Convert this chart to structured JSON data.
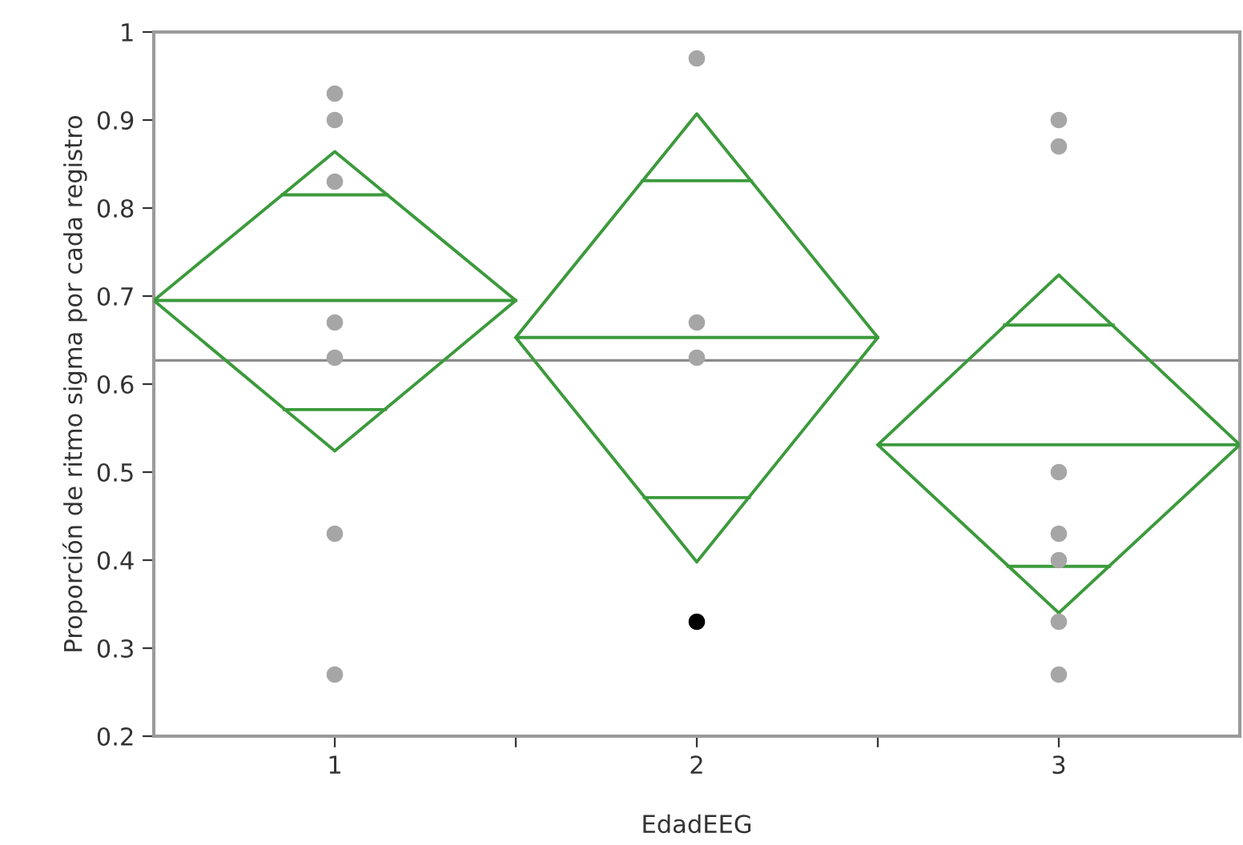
{
  "chart_data": {
    "type": "scatter",
    "xlabel": "EdadEEG",
    "ylabel": "Proporción de ritmo sigma por cada registro",
    "xlim": [
      0.5,
      3.5
    ],
    "ylim": [
      0.2,
      1.0
    ],
    "xticks": [
      1,
      {
        "value": 1.5,
        "label": null
      },
      2,
      {
        "value": 2.5,
        "label": null
      },
      3
    ],
    "yticks": [
      0.2,
      0.3,
      0.4,
      0.5,
      0.6,
      0.7,
      0.8,
      0.9,
      {
        "value": 1.0,
        "label": "1"
      }
    ],
    "grid": false,
    "marker": "circle",
    "ref_lines": [
      {
        "axis": "y",
        "value": 0.627,
        "color": "#8c8c8c"
      }
    ],
    "series": [
      {
        "type": "line",
        "marker": "none",
        "line_style": "solid",
        "color": "#3c9a3c",
        "x": [
          0.5,
          1,
          1.5,
          1,
          0.5,
          1.5
        ],
        "values": [
          0.695,
          0.864,
          0.695,
          0.524,
          0.695,
          0.695
        ]
      },
      {
        "type": "line",
        "marker": "none",
        "line_style": "solid",
        "color": "#3c9a3c",
        "x": [
          0.855,
          1.145
        ],
        "values": [
          0.815,
          0.815
        ]
      },
      {
        "type": "line",
        "marker": "none",
        "line_style": "solid",
        "color": "#3c9a3c",
        "x": [
          0.86,
          1.14
        ],
        "values": [
          0.571,
          0.571
        ]
      },
      {
        "type": "line",
        "marker": "none",
        "line_style": "solid",
        "color": "#3c9a3c",
        "x": [
          1.5,
          2,
          2.5,
          2,
          1.5,
          2.5
        ],
        "values": [
          0.653,
          0.907,
          0.653,
          0.398,
          0.653,
          0.653
        ]
      },
      {
        "type": "line",
        "marker": "none",
        "line_style": "solid",
        "color": "#3c9a3c",
        "x": [
          1.85,
          2.15
        ],
        "values": [
          0.831,
          0.831
        ]
      },
      {
        "type": "line",
        "marker": "none",
        "line_style": "solid",
        "color": "#3c9a3c",
        "x": [
          1.855,
          2.145
        ],
        "values": [
          0.471,
          0.471
        ]
      },
      {
        "type": "line",
        "marker": "none",
        "line_style": "solid",
        "color": "#3c9a3c",
        "x": [
          2.5,
          3,
          3.5,
          3,
          2.5,
          3.5
        ],
        "values": [
          0.531,
          0.724,
          0.531,
          0.34,
          0.531,
          0.531
        ]
      },
      {
        "type": "line",
        "marker": "none",
        "line_style": "solid",
        "color": "#3c9a3c",
        "x": [
          2.85,
          3.15
        ],
        "values": [
          0.667,
          0.667
        ]
      },
      {
        "type": "line",
        "marker": "none",
        "line_style": "solid",
        "color": "#3c9a3c",
        "x": [
          2.86,
          3.14
        ],
        "values": [
          0.393,
          0.393
        ]
      },
      {
        "color": "#a6a6a6",
        "x": [
          1,
          1,
          1,
          1,
          1,
          1,
          1
        ],
        "values": [
          0.93,
          0.9,
          0.83,
          0.67,
          0.63,
          0.43,
          0.27
        ]
      },
      {
        "color": "#a6a6a6",
        "x": [
          2,
          2,
          2
        ],
        "values": [
          0.97,
          0.67,
          0.63
        ]
      },
      {
        "color": "#000000",
        "x": [
          2
        ],
        "values": [
          0.33
        ]
      },
      {
        "color": "#a6a6a6",
        "x": [
          3,
          3,
          3,
          3,
          3,
          3,
          3
        ],
        "values": [
          0.9,
          0.87,
          0.5,
          0.43,
          0.4,
          0.33,
          0.27
        ]
      }
    ]
  }
}
